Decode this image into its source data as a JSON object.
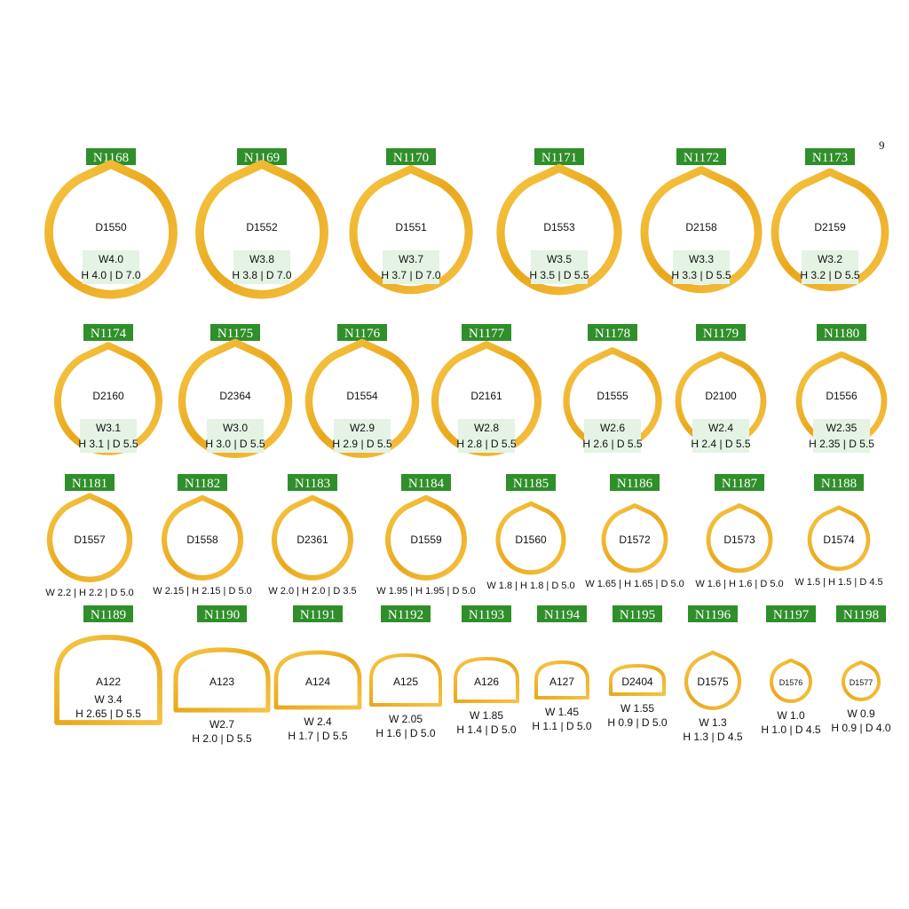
{
  "page": "9",
  "rows": [
    {
      "items": [
        {
          "code": "N1168",
          "model": "D1550",
          "lines": [
            "W4.0",
            "H 4.0 | D 7.0"
          ]
        },
        {
          "code": "N1169",
          "model": "D1552",
          "lines": [
            "W3.8",
            "H 3.8 | D 7.0"
          ]
        },
        {
          "code": "N1170",
          "model": "D1551",
          "lines": [
            "W3.7",
            "H 3.7 | D 7.0"
          ]
        },
        {
          "code": "N1171",
          "model": "D1553",
          "lines": [
            "W3.5",
            "H 3.5 | D 5.5"
          ]
        },
        {
          "code": "N1172",
          "model": "D2158",
          "lines": [
            "W3.3",
            "H 3.3 | D 5.5"
          ]
        },
        {
          "code": "N1173",
          "model": "D2159",
          "lines": [
            "W3.2",
            "H 3.2 | D 5.5"
          ]
        }
      ]
    },
    {
      "items": [
        {
          "code": "N1174",
          "model": "D2160",
          "lines": [
            "W3.1",
            "H 3.1 | D 5.5"
          ]
        },
        {
          "code": "N1175",
          "model": "D2364",
          "lines": [
            "W3.0",
            "H 3.0 | D 5.5"
          ]
        },
        {
          "code": "N1176",
          "model": "D1554",
          "lines": [
            "W2.9",
            "H 2.9 | D 5.5"
          ]
        },
        {
          "code": "N1177",
          "model": "D2161",
          "lines": [
            "W2.8",
            "H 2.8 | D 5.5"
          ]
        },
        {
          "code": "N1178",
          "model": "D1555",
          "lines": [
            "W2.6",
            "H 2.6 | D 5.5"
          ]
        },
        {
          "code": "N1179",
          "model": "D2100",
          "lines": [
            "W2.4",
            "H 2.4 | D 5.5"
          ]
        },
        {
          "code": "N1180",
          "model": "D1556",
          "lines": [
            "W2.35",
            "H 2.35 | D 5.5"
          ]
        }
      ]
    },
    {
      "items": [
        {
          "code": "N1181",
          "model": "D1557",
          "lines": [
            "W 2.2 | H 2.2 | D 5.0"
          ]
        },
        {
          "code": "N1182",
          "model": "D1558",
          "lines": [
            "W 2.15 | H 2.15 | D 5.0"
          ]
        },
        {
          "code": "N1183",
          "model": "D2361",
          "lines": [
            "W 2.0 | H 2.0 | D 3.5"
          ]
        },
        {
          "code": "N1184",
          "model": "D1559",
          "lines": [
            "W 1.95 | H 1.95 | D 5.0"
          ]
        },
        {
          "code": "N1185",
          "model": "D1560",
          "lines": [
            "W 1.8 | H 1.8 | D 5.0"
          ]
        },
        {
          "code": "N1186",
          "model": "D1572",
          "lines": [
            "W 1.65 | H 1.65 | D 5.0"
          ]
        },
        {
          "code": "N1187",
          "model": "D1573",
          "lines": [
            "W 1.6 | H 1.6 | D 5.0"
          ]
        },
        {
          "code": "N1188",
          "model": "D1574",
          "lines": [
            "W 1.5 | H 1.5 | D 4.5"
          ]
        }
      ]
    },
    {
      "items": [
        {
          "code": "N1189",
          "model": "A122",
          "lines": [
            "W 3.4",
            "H 2.65 | D 5.5"
          ]
        },
        {
          "code": "N1190",
          "model": "A123",
          "lines": [
            "W2.7",
            "H 2.0 | D 5.5"
          ]
        },
        {
          "code": "N1191",
          "model": "A124",
          "lines": [
            "W 2.4",
            "H 1.7 | D 5.5"
          ]
        },
        {
          "code": "N1192",
          "model": "A125",
          "lines": [
            "W 2.05",
            "H 1.6 | D 5.0"
          ]
        },
        {
          "code": "N1193",
          "model": "A126",
          "lines": [
            "W 1.85",
            "H 1.4 | D 5.0"
          ]
        },
        {
          "code": "N1194",
          "model": "A127",
          "lines": [
            "W 1.45",
            "H 1.1 | D 5.0"
          ]
        },
        {
          "code": "N1195",
          "model": "D2404",
          "lines": [
            "W 1.55",
            "H 0.9 | D 5.0"
          ]
        },
        {
          "code": "N1196",
          "model": "D1575",
          "lines": [
            "W 1.3",
            "H 1.3 | D 4.5"
          ]
        },
        {
          "code": "N1197",
          "model": "D1576",
          "lines": [
            "W 1.0",
            "H 1.0 | D 4.5"
          ]
        },
        {
          "code": "N1198",
          "model": "D1577",
          "lines": [
            "W 0.9",
            "H 0.9 | D 4.0"
          ]
        }
      ]
    }
  ]
}
